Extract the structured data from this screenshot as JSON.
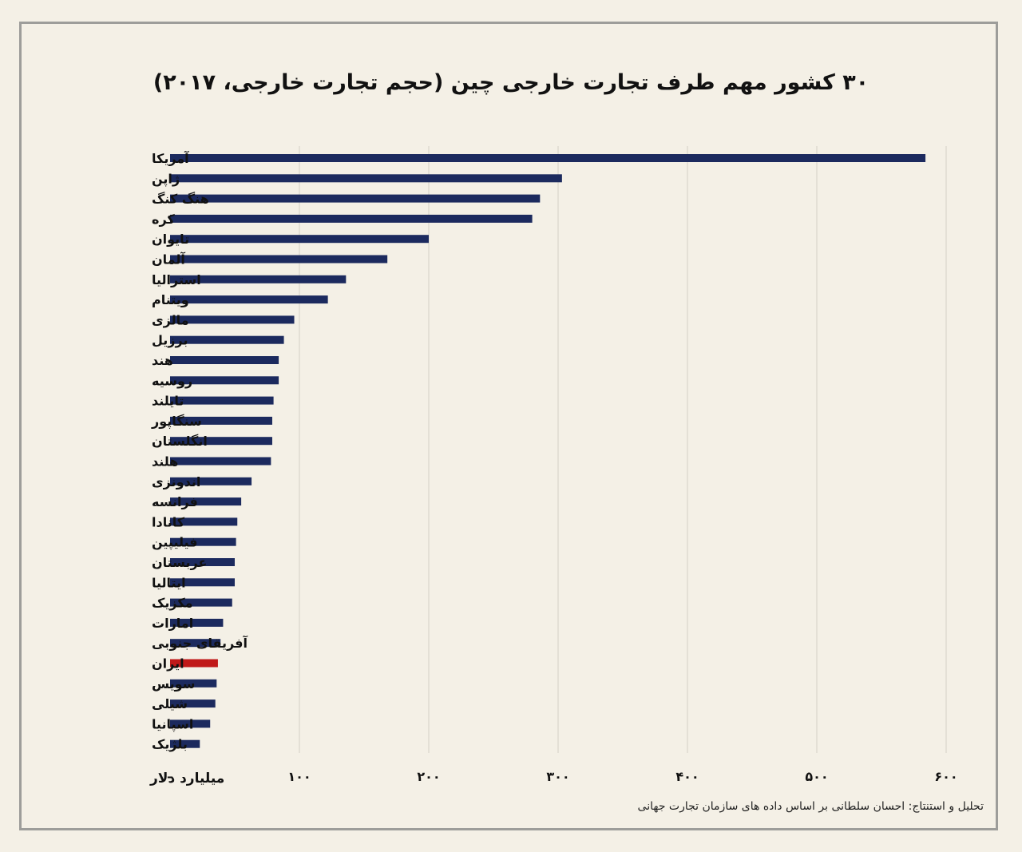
{
  "chart_data": {
    "type": "bar",
    "orientation": "horizontal",
    "title": "۳۰ کشور مهم طرف تجارت خارجی چین (حجم تجارت خارجی، ۲۰۱۷)",
    "xlabel": "میلیارد دلار",
    "xlim": [
      0,
      600
    ],
    "xticks": [
      0,
      100,
      200,
      300,
      400,
      500,
      600
    ],
    "xtick_labels": [
      "–",
      "۱۰۰",
      "۲۰۰",
      "۳۰۰",
      "۴۰۰",
      "۵۰۰",
      "۶۰۰"
    ],
    "grid": "vertical",
    "categories": [
      "آمریکا",
      "ژاپن",
      "هنگ کنگ",
      "کره",
      "تایوان",
      "آلمان",
      "استرالیا",
      "ویتنام",
      "مالزی",
      "برزیل",
      "هند",
      "روسیه",
      "تایلند",
      "سنگاپور",
      "انگلستان",
      "هلند",
      "اندونزی",
      "فرانسه",
      "کانادا",
      "فیلیپین",
      "عربستان",
      "ایتالیا",
      "مکزیک",
      "امارات",
      "آفریقای جنوبی",
      "ایران",
      "سویس",
      "شیلی",
      "اسپانیا",
      "بلژیک"
    ],
    "values": [
      584,
      303,
      286,
      280,
      200,
      168,
      136,
      122,
      96,
      88,
      84,
      84,
      80,
      79,
      79,
      78,
      63,
      55,
      52,
      51,
      50,
      50,
      48,
      41,
      39,
      37,
      36,
      35,
      31,
      23
    ],
    "colors": {
      "default": "#1c2a5e",
      "highlight": "#c01919",
      "highlight_category": "ایران",
      "grid": "#d3cfc6",
      "text": "#111111"
    }
  },
  "source": {
    "line1": "تحلیل و استنتاج: احسان سلطانی بر اساس داده های سازمان تجارت جهانی",
    "line2": ""
  }
}
